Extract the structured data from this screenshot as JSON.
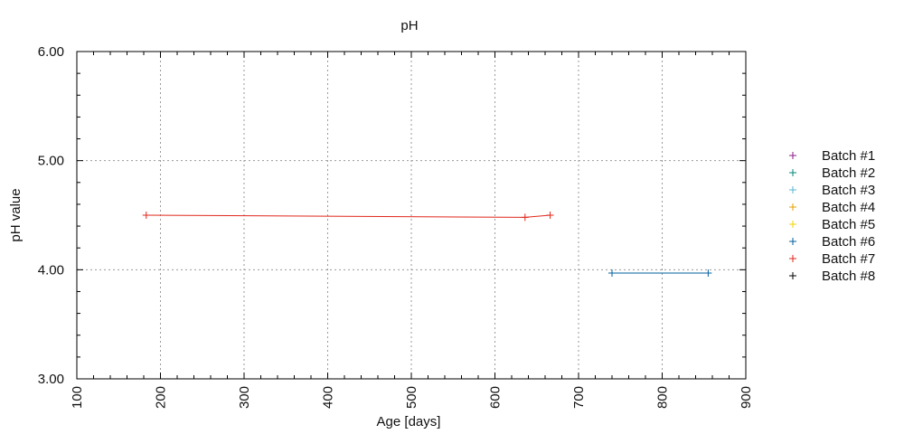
{
  "chart_data": {
    "type": "line",
    "title": "pH",
    "xlabel": "Age [days]",
    "ylabel": "pH value",
    "xlim": [
      100,
      900
    ],
    "ylim": [
      3.0,
      6.0
    ],
    "x_ticks": [
      "100",
      "200",
      "300",
      "400",
      "500",
      "600",
      "700",
      "800",
      "900"
    ],
    "y_ticks": [
      "3.00",
      "4.00",
      "5.00",
      "6.00"
    ],
    "grid": true,
    "legend_position": "right",
    "series": [
      {
        "name": "Batch #1",
        "color": "#8b1a89",
        "points": []
      },
      {
        "name": "Batch #2",
        "color": "#00877a",
        "points": []
      },
      {
        "name": "Batch #3",
        "color": "#57b5d6",
        "points": []
      },
      {
        "name": "Batch #4",
        "color": "#e3a000",
        "points": []
      },
      {
        "name": "Batch #5",
        "color": "#f2d600",
        "points": []
      },
      {
        "name": "Batch #6",
        "color": "#005f9e",
        "points": [
          [
            740,
            3.97
          ],
          [
            855,
            3.97
          ]
        ]
      },
      {
        "name": "Batch #7",
        "color": "#e0271b",
        "points": [
          [
            183,
            4.5
          ],
          [
            636,
            4.48
          ],
          [
            666,
            4.5
          ]
        ]
      },
      {
        "name": "Batch #8",
        "color": "#000000",
        "points": []
      }
    ]
  }
}
